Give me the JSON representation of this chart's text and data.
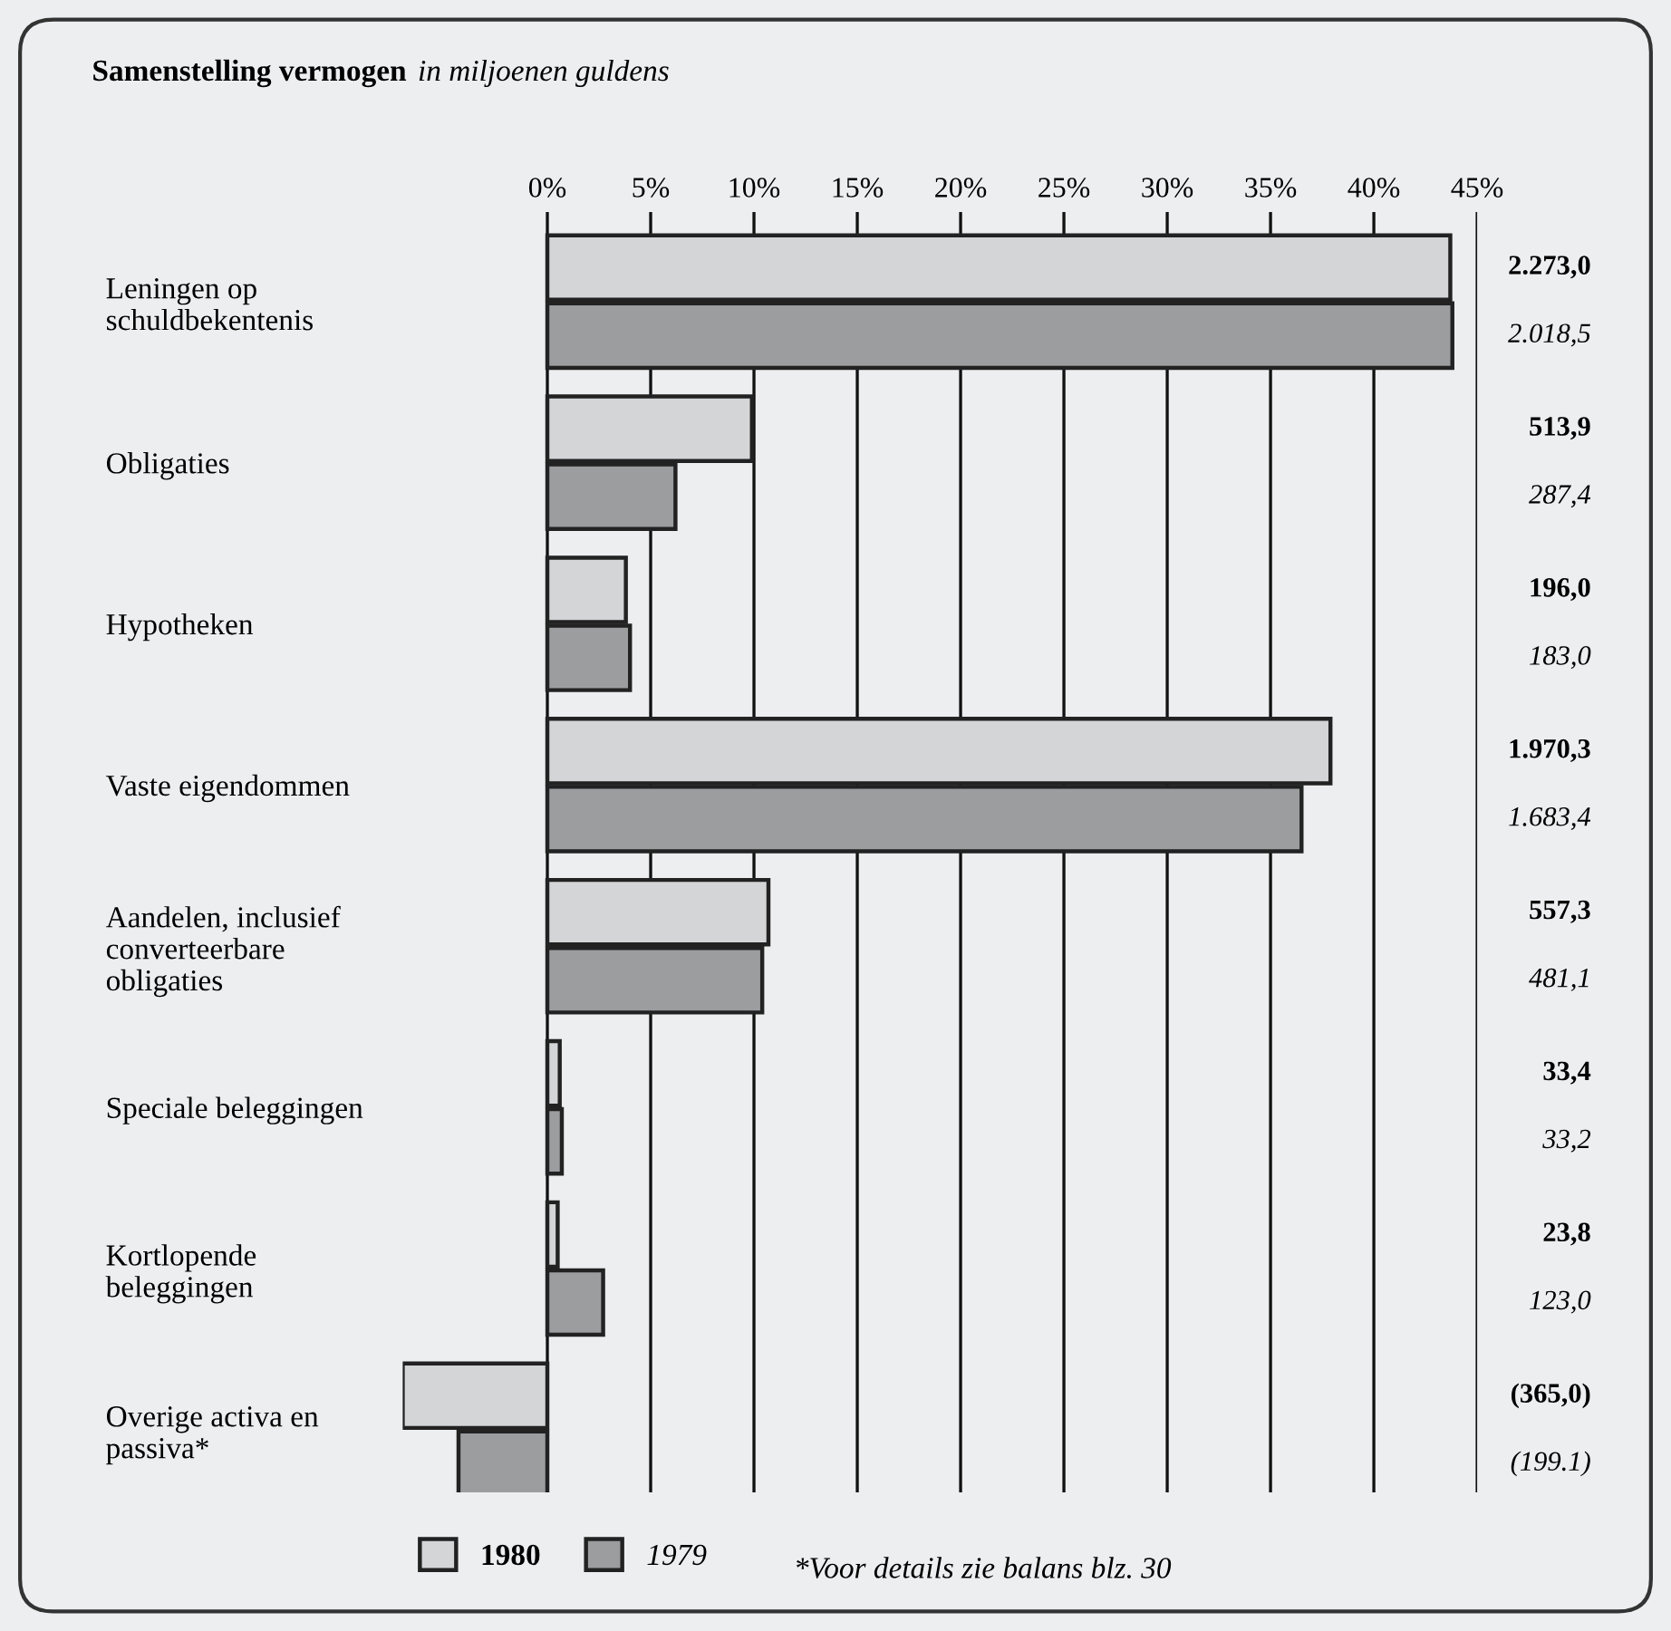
{
  "chart_data": {
    "type": "bar",
    "orientation": "horizontal",
    "title": "Samenstelling vermogen",
    "subtitle": "in miljoenen guldens",
    "categories": [
      "Leningen op\nschuldbekentenis",
      "Obligaties",
      "Hypotheken",
      "Vaste eigendommen",
      "Aandelen, inclusief\nconverteerbare\nobligaties",
      "Speciale beleggingen",
      "Kortlopende\nbeleggingen",
      "Overige activa en\npassiva*"
    ],
    "series": [
      {
        "name": "1980",
        "color": "#d3d5d7",
        "values": [
          43.7,
          9.9,
          3.8,
          37.9,
          10.7,
          0.6,
          0.5,
          -7.0
        ]
      },
      {
        "name": "1979",
        "color": "#9b9d9f",
        "values": [
          43.8,
          6.2,
          4.0,
          36.5,
          10.4,
          0.7,
          2.7,
          -4.3
        ]
      }
    ],
    "xlim": [
      -7.0,
      45
    ],
    "xticks": [
      {
        "value": 0,
        "label": "0%"
      },
      {
        "value": 5,
        "label": "5%"
      },
      {
        "value": 10,
        "label": "10%"
      },
      {
        "value": 15,
        "label": "15%"
      },
      {
        "value": 20,
        "label": "20%"
      },
      {
        "value": 25,
        "label": "25%"
      },
      {
        "value": 30,
        "label": "30%"
      },
      {
        "value": 35,
        "label": "35%"
      },
      {
        "value": 40,
        "label": "40%"
      },
      {
        "value": 45,
        "label": "45%"
      }
    ],
    "grid": "x",
    "legend": "bottom",
    "annotations": [
      "2.273,0",
      "2.018,5",
      "513,9",
      "287,4",
      "196,0",
      "183,0",
      "1.970,3",
      "1.683,4",
      "557,3",
      "481,1",
      "33,4",
      "33,2",
      "23,8",
      "123,0",
      "(365,0)",
      "(199.1)",
      "*Voor details zie balans blz. 30"
    ]
  }
}
